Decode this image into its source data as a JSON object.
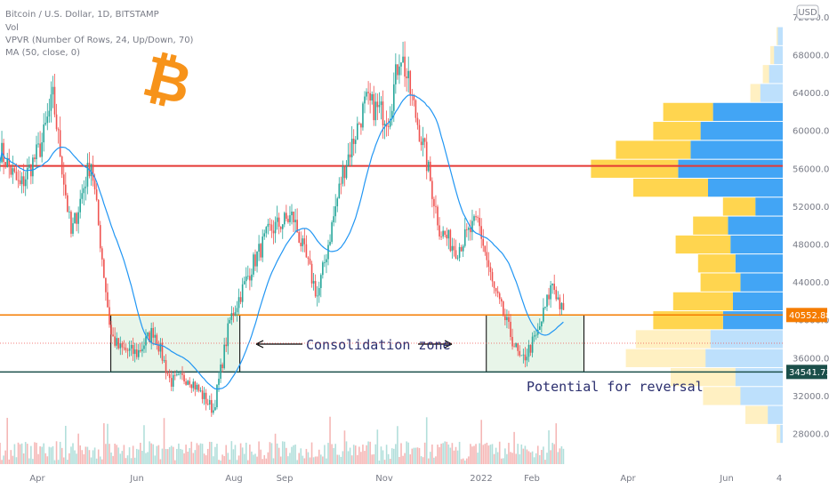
{
  "header": {
    "symbol": "Bitcoin / U.S. Dollar, 1D, BITSTAMP",
    "indicator_vol": "Vol",
    "indicator_vpvr": "VPVR (Number Of Rows, 24, Up/Down, 70)",
    "indicator_ma": "MA (50, close, 0)"
  },
  "currency_button": "USD",
  "logo": {
    "name": "bitcoin-logo",
    "glyph": "₿",
    "color": "#f7931a"
  },
  "annotations": {
    "consolidation": "Consolidation zone",
    "reversal": "Potential for reversal"
  },
  "colors": {
    "up": "#26a69a",
    "down": "#ef5350",
    "ma": "#2196f3",
    "resistance": "#e53935",
    "support_upper": "#f57c00",
    "support_lower": "#1b4f4a",
    "vpvr_up": "#42a5f5",
    "vpvr_down": "#ffd54f",
    "zone_fill": "#e8f5e9"
  },
  "chart_data": {
    "type": "candlestick",
    "title": "Bitcoin / U.S. Dollar, 1D, BITSTAMP",
    "x_ticks": [
      "Apr",
      "Jun",
      "Aug",
      "Sep",
      "Nov",
      "2022",
      "Feb",
      "Apr",
      "Jun",
      "4"
    ],
    "y_ticks": [
      28000,
      32000,
      36000,
      40000,
      44000,
      48000,
      52000,
      56000,
      60000,
      64000,
      68000,
      72000
    ],
    "ylim": [
      26500,
      73000
    ],
    "price_path_dates": [
      "2021-03-13",
      "2021-03-25",
      "2021-04-07",
      "2021-04-14",
      "2021-04-25",
      "2021-05-07",
      "2021-05-19",
      "2021-05-24",
      "2021-06-04",
      "2021-06-14",
      "2021-06-24",
      "2021-07-05",
      "2021-07-20",
      "2021-07-30",
      "2021-08-13",
      "2021-08-23",
      "2021-09-06",
      "2021-09-21",
      "2021-10-06",
      "2021-10-20",
      "2021-11-03",
      "2021-11-10",
      "2021-11-25",
      "2021-12-04",
      "2021-12-14",
      "2021-12-27",
      "2022-01-05",
      "2022-01-22",
      "2022-02-01",
      "2022-02-10",
      "2022-02-17"
    ],
    "price_path_values": [
      58000,
      54000,
      58500,
      63500,
      49000,
      57000,
      38500,
      37000,
      36500,
      39000,
      33500,
      34000,
      30500,
      40000,
      46000,
      49500,
      51000,
      42500,
      55500,
      63000,
      61500,
      68500,
      57500,
      49500,
      47500,
      50500,
      43500,
      35500,
      38500,
      44000,
      40300
    ],
    "ma_label": "MA (50, close, 0)",
    "vpvr_label": "VPVR (Number Of Rows, 24, Up/Down, 70)",
    "vpvr_rows": [
      {
        "price": 70000,
        "up": 0.2,
        "down": 0.05
      },
      {
        "price": 68000,
        "up": 0.35,
        "down": 0.15
      },
      {
        "price": 66000,
        "up": 0.55,
        "down": 0.25
      },
      {
        "price": 64000,
        "up": 0.9,
        "down": 0.4
      },
      {
        "price": 62000,
        "up": 2.8,
        "down": 2.0
      },
      {
        "price": 60000,
        "up": 3.3,
        "down": 1.9
      },
      {
        "price": 58000,
        "up": 3.7,
        "down": 3.0
      },
      {
        "price": 56000,
        "up": 4.2,
        "down": 3.5
      },
      {
        "price": 54000,
        "up": 3.0,
        "down": 3.0
      },
      {
        "price": 52000,
        "up": 1.1,
        "down": 1.3
      },
      {
        "price": 50000,
        "up": 2.2,
        "down": 1.4
      },
      {
        "price": 48000,
        "up": 2.1,
        "down": 2.2
      },
      {
        "price": 46000,
        "up": 1.9,
        "down": 1.5
      },
      {
        "price": 44000,
        "up": 1.7,
        "down": 1.6
      },
      {
        "price": 42000,
        "up": 2.0,
        "down": 2.4
      },
      {
        "price": 40000,
        "up": 2.4,
        "down": 2.8
      },
      {
        "price": 38000,
        "up": 2.9,
        "down": 3.0
      },
      {
        "price": 36000,
        "up": 3.1,
        "down": 3.2
      },
      {
        "price": 34000,
        "up": 1.9,
        "down": 2.6
      },
      {
        "price": 32000,
        "up": 1.7,
        "down": 1.5
      },
      {
        "price": 30000,
        "up": 0.6,
        "down": 0.9
      },
      {
        "price": 28000,
        "up": 0.1,
        "down": 0.15
      }
    ],
    "levels": [
      {
        "name": "resistance",
        "value": 56300
      },
      {
        "name": "support-upper",
        "value": 40552.88,
        "label": "40552.88"
      },
      {
        "name": "support-lower",
        "value": 34541.73,
        "label": "34541.73"
      }
    ],
    "last_price": 37500,
    "consolidation_zones": [
      {
        "start": "2021-05-19",
        "end": "2021-08-05",
        "low": 34541.73,
        "high": 40552.88
      },
      {
        "start": "2022-01-01",
        "end": "2022-03-01",
        "low": 34541.73,
        "high": 40552.88
      }
    ]
  }
}
